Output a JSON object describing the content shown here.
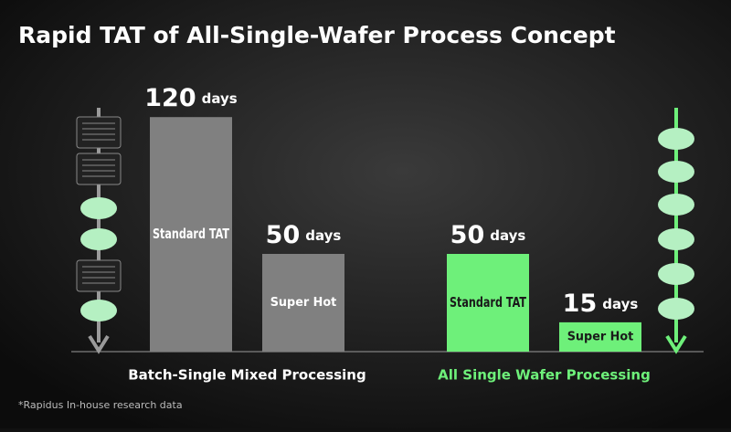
{
  "chart_data": {
    "type": "bar",
    "title": "Rapid TAT of All-Single-Wafer Process Concept",
    "categories": [
      "Standard TAT",
      "Super Hot"
    ],
    "unit": "days",
    "series": [
      {
        "name": "Batch-Single Mixed Processing",
        "color": "#808080",
        "label_color": "#ffffff",
        "values": [
          120,
          50
        ]
      },
      {
        "name": "All Single Wafer Processing",
        "color": "#6ef07a",
        "label_color": "#1a1a1a",
        "values": [
          50,
          15
        ]
      }
    ],
    "footnote": "*Rapidus In-house research data"
  }
}
